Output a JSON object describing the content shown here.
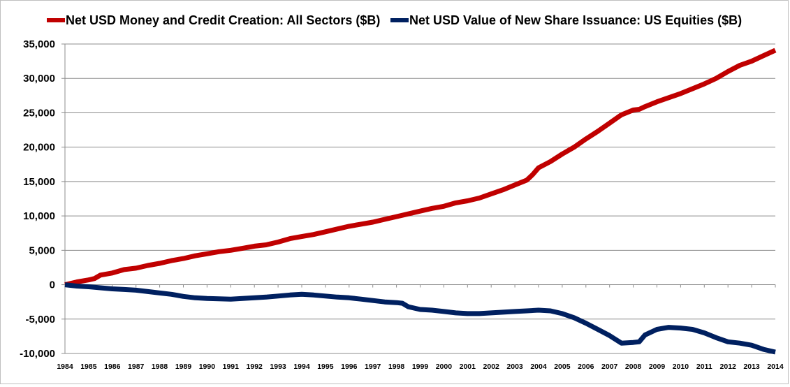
{
  "chart_data": {
    "type": "line",
    "title": "",
    "xlabel": "",
    "ylabel": "",
    "xlim": [
      1984,
      2014
    ],
    "ylim": [
      -10000,
      35000
    ],
    "y_ticks": [
      35000,
      30000,
      25000,
      20000,
      15000,
      10000,
      5000,
      0,
      -5000,
      -10000
    ],
    "y_tick_labels": [
      "35,000",
      "30,000",
      "25,000",
      "20,000",
      "15,000",
      "10,000",
      "5,000",
      "0",
      "-5,000",
      "-10,000"
    ],
    "x_tick_labels": [
      "1984",
      "1985",
      "1986",
      "1987",
      "1988",
      "1989",
      "1990",
      "1991",
      "1992",
      "1993",
      "1994",
      "1995",
      "1996",
      "1997",
      "1998",
      "1999",
      "2000",
      "2001",
      "2002",
      "2003",
      "2004",
      "2005",
      "2006",
      "2007",
      "2008",
      "2009",
      "2010",
      "2011",
      "2012",
      "2013",
      "2014"
    ],
    "grid": true,
    "legend_position": "top",
    "series": [
      {
        "name": "Net USD Money and Credit Creation: All Sectors ($B)",
        "color": "#c00000",
        "points": [
          [
            1984,
            0
          ],
          [
            1984.5,
            400
          ],
          [
            1985,
            700
          ],
          [
            1985.25,
            900
          ],
          [
            1985.5,
            1400
          ],
          [
            1986,
            1700
          ],
          [
            1986.5,
            2200
          ],
          [
            1987,
            2400
          ],
          [
            1987.5,
            2800
          ],
          [
            1988,
            3100
          ],
          [
            1988.5,
            3500
          ],
          [
            1989,
            3800
          ],
          [
            1989.5,
            4200
          ],
          [
            1990,
            4500
          ],
          [
            1990.5,
            4800
          ],
          [
            1991,
            5000
          ],
          [
            1991.5,
            5300
          ],
          [
            1992,
            5600
          ],
          [
            1992.5,
            5800
          ],
          [
            1993,
            6200
          ],
          [
            1993.5,
            6700
          ],
          [
            1994,
            7000
          ],
          [
            1994.5,
            7300
          ],
          [
            1995,
            7700
          ],
          [
            1995.5,
            8100
          ],
          [
            1996,
            8500
          ],
          [
            1996.5,
            8800
          ],
          [
            1997,
            9100
          ],
          [
            1997.5,
            9500
          ],
          [
            1998,
            9900
          ],
          [
            1998.5,
            10300
          ],
          [
            1999,
            10700
          ],
          [
            1999.5,
            11100
          ],
          [
            2000,
            11400
          ],
          [
            2000.5,
            11900
          ],
          [
            2001,
            12200
          ],
          [
            2001.5,
            12600
          ],
          [
            2002,
            13200
          ],
          [
            2002.5,
            13800
          ],
          [
            2003,
            14500
          ],
          [
            2003.5,
            15200
          ],
          [
            2003.75,
            16000
          ],
          [
            2004,
            17000
          ],
          [
            2004.5,
            17900
          ],
          [
            2005,
            19000
          ],
          [
            2005.5,
            20000
          ],
          [
            2006,
            21200
          ],
          [
            2006.5,
            22300
          ],
          [
            2007,
            23500
          ],
          [
            2007.5,
            24700
          ],
          [
            2008,
            25400
          ],
          [
            2008.25,
            25500
          ],
          [
            2008.5,
            25900
          ],
          [
            2009,
            26600
          ],
          [
            2009.5,
            27200
          ],
          [
            2010,
            27800
          ],
          [
            2010.5,
            28500
          ],
          [
            2011,
            29200
          ],
          [
            2011.5,
            30000
          ],
          [
            2012,
            31000
          ],
          [
            2012.5,
            31900
          ],
          [
            2013,
            32500
          ],
          [
            2013.5,
            33300
          ],
          [
            2014,
            34100
          ]
        ]
      },
      {
        "name": "Net USD Value of New Share Issuance: US Equities ($B)",
        "color": "#002060",
        "points": [
          [
            1984,
            0
          ],
          [
            1984.5,
            -200
          ],
          [
            1985,
            -300
          ],
          [
            1985.5,
            -450
          ],
          [
            1986,
            -600
          ],
          [
            1986.5,
            -700
          ],
          [
            1987,
            -800
          ],
          [
            1987.5,
            -1000
          ],
          [
            1988,
            -1200
          ],
          [
            1988.5,
            -1400
          ],
          [
            1989,
            -1700
          ],
          [
            1989.5,
            -1900
          ],
          [
            1990,
            -2000
          ],
          [
            1990.5,
            -2050
          ],
          [
            1991,
            -2100
          ],
          [
            1991.5,
            -2000
          ],
          [
            1992,
            -1900
          ],
          [
            1992.5,
            -1800
          ],
          [
            1993,
            -1650
          ],
          [
            1993.5,
            -1500
          ],
          [
            1994,
            -1400
          ],
          [
            1994.5,
            -1500
          ],
          [
            1995,
            -1650
          ],
          [
            1995.5,
            -1800
          ],
          [
            1996,
            -1900
          ],
          [
            1996.5,
            -2100
          ],
          [
            1997,
            -2300
          ],
          [
            1997.5,
            -2500
          ],
          [
            1998,
            -2600
          ],
          [
            1998.25,
            -2700
          ],
          [
            1998.5,
            -3200
          ],
          [
            1999,
            -3600
          ],
          [
            1999.5,
            -3700
          ],
          [
            2000,
            -3900
          ],
          [
            2000.5,
            -4100
          ],
          [
            2001,
            -4200
          ],
          [
            2001.5,
            -4200
          ],
          [
            2002,
            -4100
          ],
          [
            2002.5,
            -4000
          ],
          [
            2003,
            -3900
          ],
          [
            2003.5,
            -3800
          ],
          [
            2004,
            -3700
          ],
          [
            2004.5,
            -3800
          ],
          [
            2005,
            -4200
          ],
          [
            2005.5,
            -4800
          ],
          [
            2006,
            -5600
          ],
          [
            2006.5,
            -6500
          ],
          [
            2007,
            -7400
          ],
          [
            2007.5,
            -8500
          ],
          [
            2008,
            -8400
          ],
          [
            2008.25,
            -8300
          ],
          [
            2008.5,
            -7300
          ],
          [
            2009,
            -6500
          ],
          [
            2009.5,
            -6200
          ],
          [
            2010,
            -6300
          ],
          [
            2010.5,
            -6500
          ],
          [
            2011,
            -7000
          ],
          [
            2011.5,
            -7700
          ],
          [
            2012,
            -8300
          ],
          [
            2012.5,
            -8500
          ],
          [
            2013,
            -8800
          ],
          [
            2013.5,
            -9400
          ],
          [
            2014,
            -9800
          ]
        ]
      }
    ]
  }
}
